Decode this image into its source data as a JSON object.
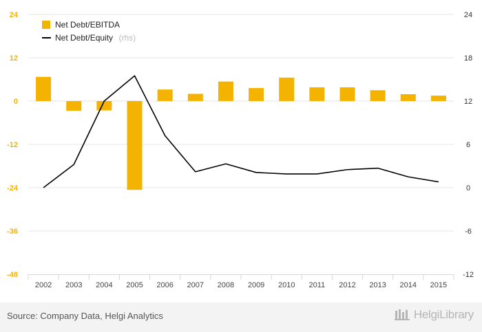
{
  "chart_data": {
    "type": "bar+line",
    "categories": [
      "2002",
      "2003",
      "2004",
      "2005",
      "2006",
      "2007",
      "2008",
      "2009",
      "2010",
      "2011",
      "2012",
      "2013",
      "2014",
      "2015"
    ],
    "series": [
      {
        "name": "Net Debt/EBITDA",
        "type": "bar",
        "axis": "left",
        "color": "#f5b301",
        "values": [
          6.7,
          -2.7,
          -2.6,
          -24.6,
          3.2,
          2.0,
          5.4,
          3.6,
          6.5,
          3.8,
          3.8,
          3.0,
          1.9,
          1.5
        ]
      },
      {
        "name": "Net Debt/Equity",
        "suffix": "(rhs)",
        "type": "line",
        "axis": "right",
        "color": "#000000",
        "values": [
          0.0,
          3.2,
          12.0,
          15.5,
          7.2,
          2.2,
          3.3,
          2.1,
          1.9,
          1.9,
          2.5,
          2.7,
          1.5,
          0.8
        ]
      }
    ],
    "y_left": {
      "min": -48,
      "max": 24,
      "ticks": [
        "24",
        "12",
        "0",
        "-12",
        "-24",
        "-36",
        "-48"
      ],
      "color": "#f5b301"
    },
    "y_right": {
      "min": -12,
      "max": 24,
      "ticks": [
        "24",
        "18",
        "12",
        "6",
        "0",
        "-6",
        "-12"
      ]
    },
    "grid": true,
    "legend_position": "top-left"
  },
  "footer": {
    "source": "Source: Company Data, Helgi Analytics",
    "brand": "HelgiLibrary"
  }
}
